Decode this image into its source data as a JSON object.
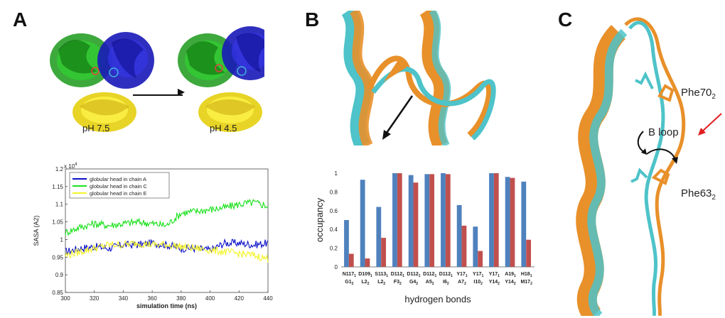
{
  "panels": {
    "a": {
      "letter": "A",
      "left_label": "pH 7.5",
      "right_label": "pH 4.5"
    },
    "b": {
      "letter": "B"
    },
    "c": {
      "letter": "C",
      "label_phe70": "Phe70",
      "label_phe70_sub": "2",
      "label_bloop": "B loop",
      "label_phe63": "Phe63",
      "label_phe63_sub": "2"
    }
  },
  "colors": {
    "chain_a": "#0a10c8",
    "chain_c": "#19e019",
    "chain_e": "#f4f42a",
    "bar_blue": "#4f81bd",
    "bar_red": "#c0504d",
    "cyan_helix": "#4ec3c9",
    "orange_helix": "#e8902a"
  },
  "chart_data": [
    {
      "type": "line",
      "title": "",
      "xlabel": "simulation time (ns)",
      "ylabel": "SASA (A2)",
      "y_multiplier": "x 10",
      "y_multiplier_exp": "4",
      "xlim": [
        300,
        440
      ],
      "ylim": [
        0.85,
        1.2
      ],
      "xticks": [
        "300",
        "320",
        "340",
        "360",
        "380",
        "400",
        "420",
        "440"
      ],
      "yticks": [
        "0.85",
        "0.9",
        "0.95",
        "1",
        "1.05",
        "1.1",
        "1.15",
        "1.2"
      ],
      "legend_position": "top-left",
      "series": [
        {
          "name": "globular head in chain A",
          "color": "#0a10c8",
          "x": [
            300,
            310,
            320,
            330,
            340,
            350,
            360,
            370,
            380,
            390,
            400,
            410,
            420,
            430,
            440
          ],
          "values": [
            0.965,
            0.975,
            0.98,
            0.975,
            0.985,
            0.985,
            0.99,
            0.985,
            0.975,
            0.975,
            0.97,
            0.99,
            0.99,
            0.985,
            0.99
          ]
        },
        {
          "name": "globular head in chain C",
          "color": "#19e019",
          "x": [
            300,
            310,
            320,
            330,
            340,
            350,
            360,
            370,
            380,
            390,
            400,
            410,
            420,
            430,
            440
          ],
          "values": [
            1.02,
            1.035,
            1.045,
            1.04,
            1.045,
            1.05,
            1.045,
            1.04,
            1.075,
            1.08,
            1.085,
            1.09,
            1.1,
            1.105,
            1.095
          ]
        },
        {
          "name": "globular head in chain E",
          "color": "#f4f42a",
          "x": [
            300,
            310,
            320,
            330,
            340,
            350,
            360,
            370,
            380,
            390,
            400,
            410,
            420,
            430,
            440
          ],
          "values": [
            0.955,
            0.965,
            0.975,
            0.985,
            0.985,
            0.99,
            0.985,
            0.985,
            0.98,
            0.975,
            0.97,
            0.965,
            0.96,
            0.955,
            0.945
          ]
        }
      ]
    },
    {
      "type": "bar",
      "title": "",
      "xlabel": "hydrogen bonds",
      "ylabel": "occupancy",
      "ylim": [
        0,
        1
      ],
      "yticks": [
        "0",
        "0.2",
        "0.4",
        "0.6",
        "0.8",
        "1"
      ],
      "categories": [
        {
          "top": "N117",
          "top_sub": "1",
          "bottom": "G1",
          "bottom_sub": "2"
        },
        {
          "top": "D109",
          "top_sub": "1",
          "bottom": "L2",
          "bottom_sub": "2"
        },
        {
          "top": "S113",
          "top_sub": "1",
          "bottom": "L2",
          "bottom_sub": "2"
        },
        {
          "top": "D112",
          "top_sub": "1",
          "bottom": "F3",
          "bottom_sub": "2"
        },
        {
          "top": "D112",
          "top_sub": "1",
          "bottom": "G4",
          "bottom_sub": "2"
        },
        {
          "top": "D112",
          "top_sub": "1",
          "bottom": "A5",
          "bottom_sub": "2"
        },
        {
          "top": "D112",
          "top_sub": "1",
          "bottom": "I6",
          "bottom_sub": "2"
        },
        {
          "top": "Y17",
          "top_sub": "1",
          "bottom": "A7",
          "bottom_sub": "2"
        },
        {
          "top": "Y17",
          "top_sub": "1",
          "bottom": "I10",
          "bottom_sub": "2"
        },
        {
          "top": "Y17",
          "top_sub": "1",
          "bottom": "Y14",
          "bottom_sub": "2"
        },
        {
          "top": "A19",
          "top_sub": "1",
          "bottom": "Y14",
          "bottom_sub": "2"
        },
        {
          "top": "H18",
          "top_sub": "1",
          "bottom": "M17",
          "bottom_sub": "2"
        }
      ],
      "series": [
        {
          "color": "#4f81bd",
          "values": [
            0.5,
            0.93,
            0.64,
            1.0,
            0.98,
            0.99,
            1.0,
            0.66,
            0.43,
            1.0,
            0.96,
            0.91
          ]
        },
        {
          "color": "#c0504d",
          "values": [
            0.14,
            0.09,
            0.31,
            1.0,
            0.9,
            0.99,
            0.99,
            0.44,
            0.17,
            1.0,
            0.95,
            0.29
          ]
        }
      ]
    }
  ]
}
